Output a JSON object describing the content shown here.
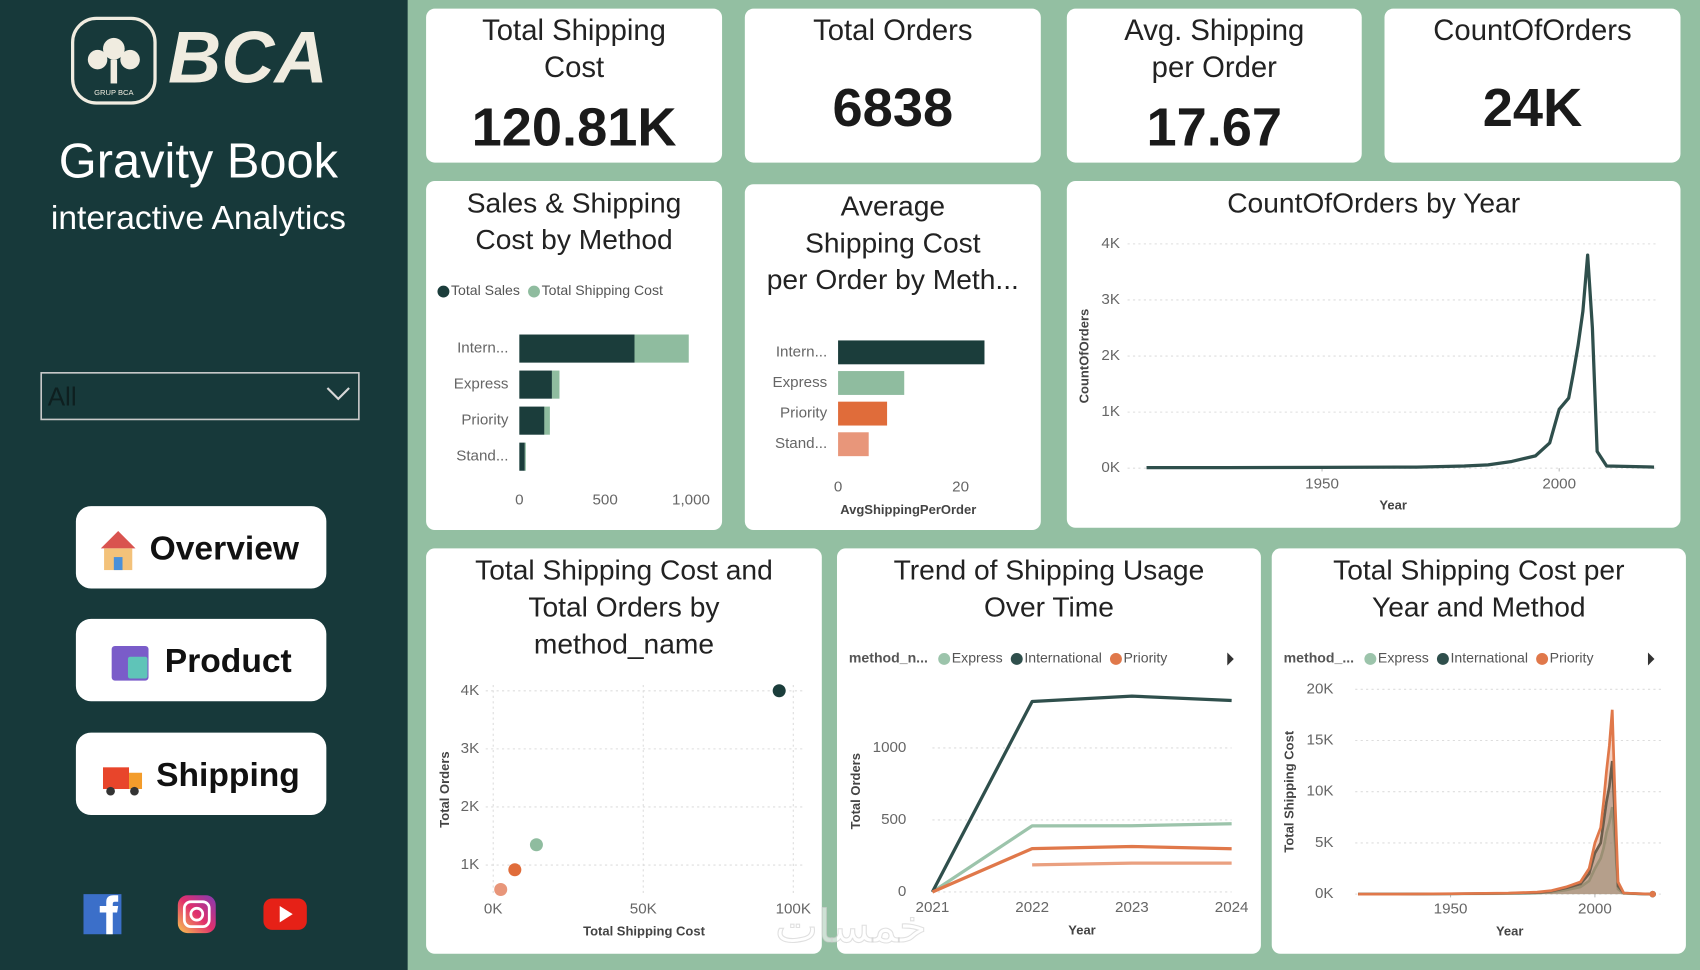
{
  "sidebar": {
    "logo_text": "BCA",
    "logo_sub": "GRUP BCA",
    "title": "Gravity Book",
    "subtitle": "interactive Analytics",
    "filter": "All",
    "nav": [
      "Overview",
      "Product",
      "Shipping"
    ]
  },
  "kpis": [
    {
      "label": [
        "Total Shipping",
        "Cost"
      ],
      "value": "120.81K"
    },
    {
      "label": [
        "Total Orders"
      ],
      "value": "6838"
    },
    {
      "label": [
        "Avg. Shipping",
        "per Order"
      ],
      "value": "17.67"
    },
    {
      "label": [
        "CountOfOrders"
      ],
      "value": "24K"
    }
  ],
  "watermark": "خمسات",
  "chart_data": [
    {
      "type": "bar",
      "orientation": "horizontal",
      "title": [
        "Sales & Shipping",
        "Cost by Method"
      ],
      "categories": [
        "Intern...",
        "Express",
        "Priority",
        "Stand..."
      ],
      "series": [
        {
          "name": "Total Sales",
          "color": "#1b3d3b",
          "values": [
            671,
            190,
            146,
            32
          ]
        },
        {
          "name": "Total Shipping Cost",
          "color": "#8fbc9f",
          "values": [
            316,
            44,
            32,
            6
          ]
        }
      ],
      "xlim": [
        0,
        1080
      ],
      "xticks": [
        0,
        500,
        {
          "value": 1000,
          "label": "1,000"
        }
      ]
    },
    {
      "type": "bar",
      "orientation": "horizontal",
      "title": [
        "Average",
        "Shipping Cost",
        "per Order by Meth..."
      ],
      "categories": [
        "Intern...",
        "Express",
        "Priority",
        "Stand..."
      ],
      "values": [
        23.9,
        10.8,
        8.0,
        5.0
      ],
      "colors": [
        "#1b3d3b",
        "#8fbc9f",
        "#e06c3a",
        "#e8967a"
      ],
      "xlim": [
        0,
        30
      ],
      "xticks": [
        0,
        20
      ],
      "xlabel": "AvgShippingPerOrder"
    },
    {
      "type": "line",
      "title": [
        "CountOfOrders by Year"
      ],
      "x": [
        1913,
        1930,
        1950,
        1970,
        1980,
        1985,
        1990,
        1995,
        1998,
        2000,
        2002,
        2003,
        2004,
        2005,
        2006,
        2007,
        2008,
        2010,
        2015,
        2020
      ],
      "values": [
        10,
        10,
        15,
        20,
        40,
        60,
        120,
        220,
        450,
        1050,
        1250,
        1700,
        2200,
        2800,
        3800,
        2500,
        300,
        40,
        30,
        20
      ],
      "color": "#2f4f4c",
      "xlim": [
        1909,
        2021
      ],
      "xticks": [
        1950,
        2000
      ],
      "ylim": [
        0,
        4000
      ],
      "yticks": [
        {
          "value": 0,
          "label": "0K"
        },
        {
          "value": 1000,
          "label": "1K"
        },
        {
          "value": 2000,
          "label": "2K"
        },
        {
          "value": 3000,
          "label": "3K"
        },
        {
          "value": 4000,
          "label": "4K"
        }
      ],
      "xlabel": "Year",
      "ylabel": "CountOfOrders",
      "grid": true
    },
    {
      "type": "scatter",
      "title": [
        "Total Shipping Cost and",
        "Total Orders by",
        "method_name"
      ],
      "x": [
        95300,
        14400,
        7200,
        2500
      ],
      "values": [
        4000,
        1350,
        920,
        580
      ],
      "colors": [
        "#1b3d3b",
        "#8fbc9f",
        "#e06c3a",
        "#e8967a"
      ],
      "xlim": [
        -2500,
        103000
      ],
      "xticks": [
        {
          "value": 0,
          "label": "0K"
        },
        {
          "value": 50000,
          "label": "50K"
        },
        {
          "value": 100000,
          "label": "100K"
        }
      ],
      "ylim": [
        500,
        4100
      ],
      "yticks": [
        {
          "value": 1000,
          "label": "1K"
        },
        {
          "value": 2000,
          "label": "2K"
        },
        {
          "value": 3000,
          "label": "3K"
        },
        {
          "value": 4000,
          "label": "4K"
        }
      ],
      "xlabel": "Total Shipping Cost",
      "ylabel": "Total Orders",
      "grid": true
    },
    {
      "type": "line",
      "title": [
        "Trend of Shipping Usage",
        "Over Time"
      ],
      "categories": [
        "2021",
        "2022",
        "2023",
        "2024"
      ],
      "legend_title": "method_n...",
      "series": [
        {
          "name": "Express",
          "color": "#9cc4ab",
          "values": [
            0,
            459,
            460,
            474
          ]
        },
        {
          "name": "International",
          "color": "#2f4f4c",
          "values": [
            0,
            1323,
            1360,
            1330
          ]
        },
        {
          "name": "Priority",
          "color": "#e0784a",
          "values": [
            0,
            301,
            316,
            300
          ]
        },
        {
          "color": "#eaa080",
          "values": [
            null,
            188,
            200,
            200
          ]
        }
      ],
      "ylim": [
        0,
        1400
      ],
      "yticks": [
        0,
        500,
        1000
      ],
      "xlabel": "Year",
      "ylabel": "Total Orders",
      "grid": true
    },
    {
      "type": "area",
      "title": [
        "Total Shipping Cost per",
        "Year and Method"
      ],
      "legend_title": "method_...",
      "x": [
        1918,
        1930,
        1950,
        1970,
        1980,
        1985,
        1990,
        1995,
        1998,
        2000,
        2002,
        2003,
        2004,
        2005,
        2006,
        2007,
        2008,
        2010,
        2015,
        2020
      ],
      "series": [
        {
          "name": "Express",
          "color": "#9cc4ab",
          "values": [
            0,
            0,
            20,
            50,
            100,
            200,
            400,
            700,
            1300,
            2500,
            3500,
            4500,
            6000,
            7000,
            8500,
            5000,
            500,
            60,
            20,
            0
          ]
        },
        {
          "name": "International",
          "color": "#2f4f4c",
          "values": [
            0,
            0,
            30,
            80,
            150,
            300,
            600,
            1000,
            2000,
            4000,
            5000,
            7000,
            9000,
            10500,
            13000,
            7000,
            800,
            100,
            40,
            0
          ]
        },
        {
          "name": "Priority",
          "color": "#e0784a",
          "values": [
            0,
            0,
            40,
            100,
            200,
            350,
            700,
            1200,
            2500,
            5000,
            6500,
            9000,
            12000,
            14500,
            18000,
            9000,
            1200,
            100,
            50,
            0
          ]
        }
      ],
      "xlim": [
        1917,
        2024
      ],
      "xticks": [
        1950,
        2000
      ],
      "ylim": [
        0,
        20000
      ],
      "yticks": [
        {
          "value": 0,
          "label": "0K"
        },
        {
          "value": 5000,
          "label": "5K"
        },
        {
          "value": 10000,
          "label": "10K"
        },
        {
          "value": 15000,
          "label": "15K"
        },
        {
          "value": 20000,
          "label": "20K"
        }
      ],
      "xlabel": "Year",
      "ylabel": "Total Shipping Cost",
      "grid": true
    }
  ]
}
